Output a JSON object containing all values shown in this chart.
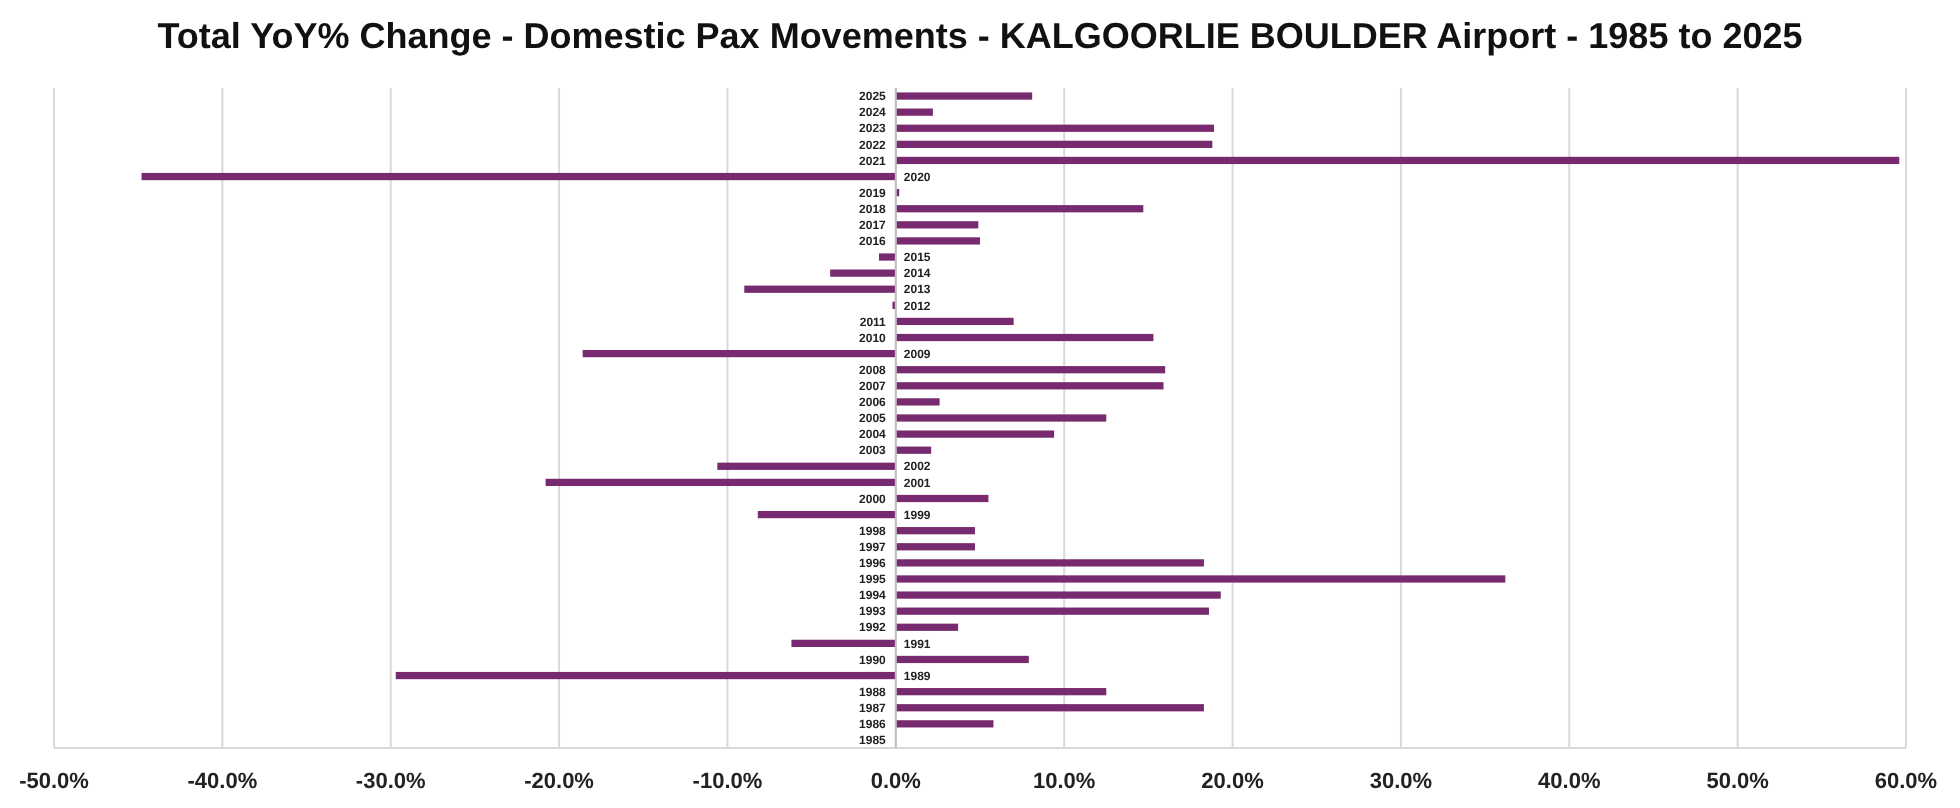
{
  "chart_data": {
    "type": "bar",
    "orientation": "horizontal",
    "title": "Total YoY% Change - Domestic Pax Movements - KALGOORLIE BOULDER Airport - 1985 to 2025",
    "categories": [
      "2025",
      "2024",
      "2023",
      "2022",
      "2021",
      "2020",
      "2019",
      "2018",
      "2017",
      "2016",
      "2015",
      "2014",
      "2013",
      "2012",
      "2011",
      "2010",
      "2009",
      "2008",
      "2007",
      "2006",
      "2005",
      "2004",
      "2003",
      "2002",
      "2001",
      "2000",
      "1999",
      "1998",
      "1997",
      "1996",
      "1995",
      "1994",
      "1993",
      "1992",
      "1991",
      "1990",
      "1989",
      "1988",
      "1987",
      "1986",
      "1985"
    ],
    "values": [
      8.1,
      2.2,
      18.9,
      18.8,
      59.6,
      -44.8,
      0.2,
      14.7,
      4.9,
      5.0,
      -1.0,
      -3.9,
      -9.0,
      -0.2,
      7.0,
      15.3,
      -18.6,
      16.0,
      15.9,
      2.6,
      12.5,
      9.4,
      2.1,
      -10.6,
      -20.8,
      5.5,
      -8.2,
      4.7,
      4.7,
      18.3,
      36.2,
      19.3,
      18.6,
      3.7,
      -6.2,
      7.9,
      -29.7,
      12.5,
      18.3,
      5.8,
      null
    ],
    "color": "#772a6f",
    "xlim": [
      -50,
      60
    ],
    "xticks": [
      {
        "value": -50,
        "label": "-50.0%"
      },
      {
        "value": -40,
        "label": "-40.0%"
      },
      {
        "value": -30,
        "label": "-30.0%"
      },
      {
        "value": -20,
        "label": "-20.0%"
      },
      {
        "value": -10,
        "label": "-10.0%"
      },
      {
        "value": 0,
        "label": "0.0%"
      },
      {
        "value": 10,
        "label": "10.0%"
      },
      {
        "value": 20,
        "label": "20.0%"
      },
      {
        "value": 30,
        "label": "30.0%"
      },
      {
        "value": 40,
        "label": "40.0%"
      },
      {
        "value": 50,
        "label": "50.0%"
      },
      {
        "value": 60,
        "label": "60.0%"
      }
    ],
    "grid": "x"
  }
}
